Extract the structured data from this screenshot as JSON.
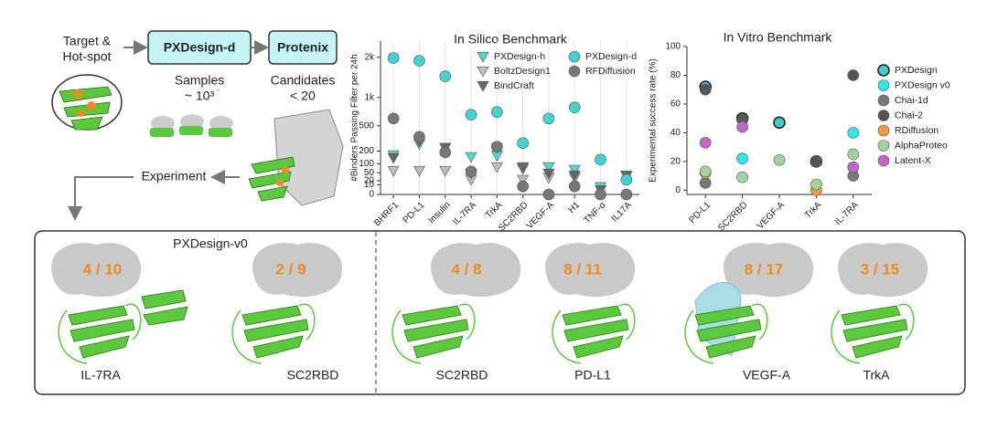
{
  "pipeline": {
    "target": [
      "Target &",
      "Hot-spot"
    ],
    "step1": "PXDesign-d",
    "step2": "Protenix",
    "samples": [
      "Samples",
      "~ 10³"
    ],
    "candidates": [
      "Candidates",
      "< 20"
    ],
    "experiment": "Experiment"
  },
  "chart_data": [
    {
      "type": "scatter",
      "title": "In Silico Benchmark",
      "y_label": "#Binders Passing Filter per 24h",
      "scale": "sqrt",
      "grid": "x",
      "legend": "top",
      "categories": [
        "BHRF1",
        "PD-L1",
        "Insulin",
        "IL-7RA",
        "TrkA",
        "SC2RBD",
        "VEGF-A",
        "H1",
        "TNF-α",
        "IL17A"
      ],
      "ylim": [
        0,
        2500
      ],
      "yticks": [
        0,
        10,
        20,
        50,
        100,
        200,
        500,
        {
          "value": 1000,
          "label": "1k"
        },
        {
          "value": 2000,
          "label": "2k"
        }
      ],
      "series": [
        {
          "name": "PXDesign-h",
          "color": "#4fd6d6",
          "marker": "triangle-down",
          "values": [
            165,
            270,
            232,
            150,
            160,
            70,
            80,
            65,
            6,
            39
          ]
        },
        {
          "name": "BoltzDesign1",
          "color": "#bdbdbd",
          "marker": "triangle-down",
          "values": [
            60,
            60,
            60,
            23,
            80,
            23,
            30,
            30,
            null,
            null
          ]
        },
        {
          "name": "BindCraft",
          "color": "#666666",
          "marker": "triangle-down",
          "values": [
            143,
            300,
            232,
            47,
            232,
            80,
            47,
            39,
            2,
            36
          ]
        },
        {
          "name": "PXDesign-d",
          "color": "#3fd3d3",
          "marker": "circle",
          "values": [
            1980,
            1900,
            1483,
            675,
            722,
            280,
            614,
            804,
            129,
            23
          ]
        },
        {
          "name": "RFDiffusion",
          "color": "#777777",
          "marker": "circle",
          "values": [
            614,
            354,
            188,
            56,
            241,
            7,
            0,
            7,
            0,
            0
          ]
        }
      ]
    },
    {
      "type": "scatter",
      "title": "In Vitro Benchmark",
      "y_label": "Experimental success rate (%)",
      "grid": "none",
      "legend": "right",
      "categories": [
        "PD-L1",
        "SC2RBD",
        "VEGF-A",
        "TrkA",
        "IL-7RA"
      ],
      "ylim": [
        -3,
        100
      ],
      "yticks": [
        0,
        20,
        40,
        60,
        80,
        100
      ],
      "series": [
        {
          "name": "PXDesign",
          "color": "#3dcfd4",
          "edgecolor": "#222222",
          "marker": "circle",
          "values": [
            72,
            50,
            47,
            20,
            null
          ]
        },
        {
          "name": "PXDesign v0",
          "color": "#2ee6ee",
          "marker": "circle",
          "values": [
            null,
            22,
            null,
            null,
            40
          ]
        },
        {
          "name": "Chai-1d",
          "color": "#777777",
          "marker": "circle",
          "values": [
            5,
            null,
            null,
            null,
            10
          ]
        },
        {
          "name": "Chai-2",
          "color": "#555555",
          "marker": "circle",
          "values": [
            70,
            49,
            null,
            20,
            80
          ]
        },
        {
          "name": "RDiffusion",
          "color": "#f59a3a",
          "marker": "circle",
          "values": [
            12,
            null,
            null,
            0,
            16
          ]
        },
        {
          "name": "AlphaProteo",
          "color": "#9fd49f",
          "marker": "circle",
          "values": [
            13,
            9,
            21,
            4,
            25
          ]
        },
        {
          "name": "Latent-X",
          "color": "#c266c9",
          "marker": "circle",
          "values": [
            33,
            44,
            null,
            null,
            16
          ]
        }
      ]
    }
  ],
  "panel": {
    "label": "PXDesign-v0",
    "cards": [
      {
        "ratio": "4 / 10",
        "target": "IL-7RA"
      },
      {
        "ratio": "2 / 9",
        "target": "SC2RBD"
      },
      {
        "ratio": "4 / 8",
        "target": "SC2RBD"
      },
      {
        "ratio": "8 / 11",
        "target": "PD-L1"
      },
      {
        "ratio": "8 / 17",
        "target": "VEGF-A"
      },
      {
        "ratio": "3 / 15",
        "target": "TrkA"
      }
    ]
  }
}
